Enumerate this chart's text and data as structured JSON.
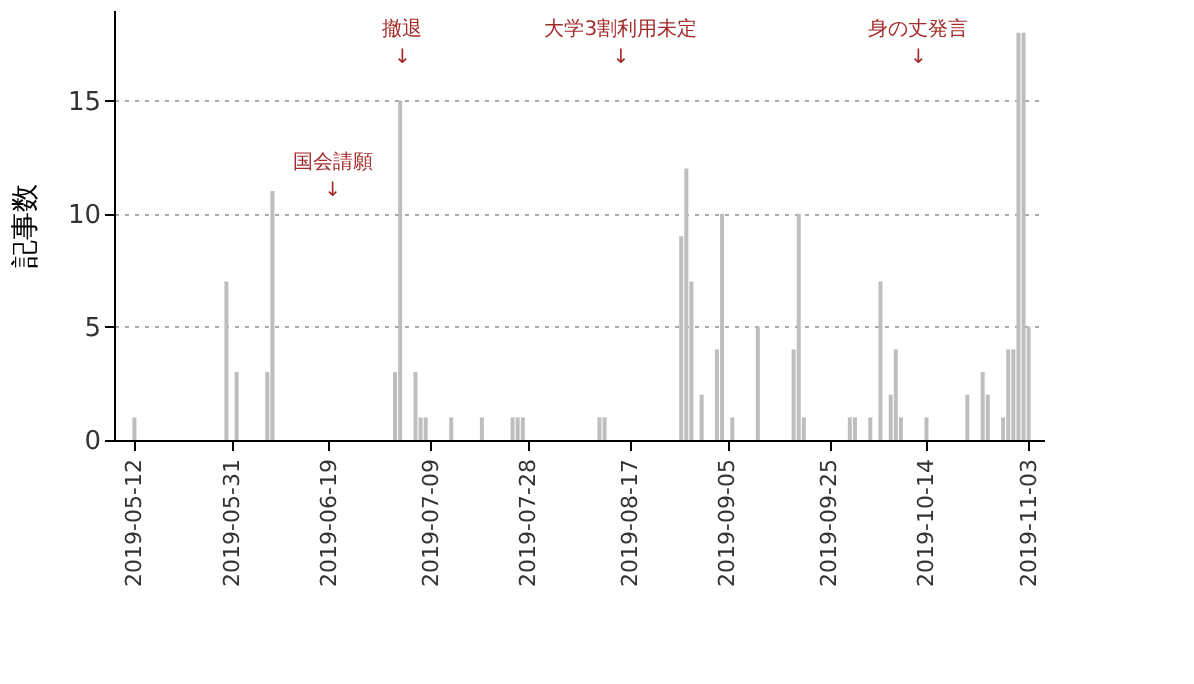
{
  "chart_data": {
    "type": "bar",
    "ylabel": "記事数",
    "x": [
      "2019-05-12",
      "2019-05-30",
      "2019-06-01",
      "2019-06-07",
      "2019-06-08",
      "2019-07-02",
      "2019-07-03",
      "2019-07-06",
      "2019-07-07",
      "2019-07-08",
      "2019-07-13",
      "2019-07-19",
      "2019-07-25",
      "2019-07-26",
      "2019-07-27",
      "2019-08-11",
      "2019-08-12",
      "2019-08-27",
      "2019-08-28",
      "2019-08-29",
      "2019-08-31",
      "2019-09-03",
      "2019-09-04",
      "2019-09-06",
      "2019-09-11",
      "2019-09-18",
      "2019-09-19",
      "2019-09-20",
      "2019-09-29",
      "2019-09-30",
      "2019-10-03",
      "2019-10-05",
      "2019-10-07",
      "2019-10-08",
      "2019-10-09",
      "2019-10-14",
      "2019-10-22",
      "2019-10-25",
      "2019-10-26",
      "2019-10-29",
      "2019-10-30",
      "2019-10-31",
      "2019-11-01",
      "2019-11-02",
      "2019-11-03"
    ],
    "values": [
      1,
      7,
      3,
      3,
      11,
      3,
      15,
      3,
      1,
      1,
      1,
      1,
      1,
      1,
      1,
      1,
      1,
      9,
      12,
      7,
      2,
      4,
      10,
      1,
      5,
      4,
      10,
      1,
      1,
      1,
      1,
      7,
      2,
      4,
      1,
      1,
      2,
      3,
      2,
      1,
      4,
      4,
      18,
      18,
      5
    ],
    "color": "#bebebe",
    "xlim": [
      "2019-05-08",
      "2019-11-06"
    ],
    "xticks": [
      "2019-05-12",
      "2019-05-31",
      "2019-06-19",
      "2019-07-09",
      "2019-07-28",
      "2019-08-17",
      "2019-09-05",
      "2019-09-25",
      "2019-10-14",
      "2019-11-03"
    ],
    "ylim": [
      0,
      19
    ],
    "yticks": [
      0,
      5,
      10,
      15
    ],
    "grid": "y",
    "annotations": [
      "国会請願\n↓",
      "撤退\n↓",
      "大学3割利用未定\n↓",
      "身の丈発言\n↓"
    ]
  }
}
